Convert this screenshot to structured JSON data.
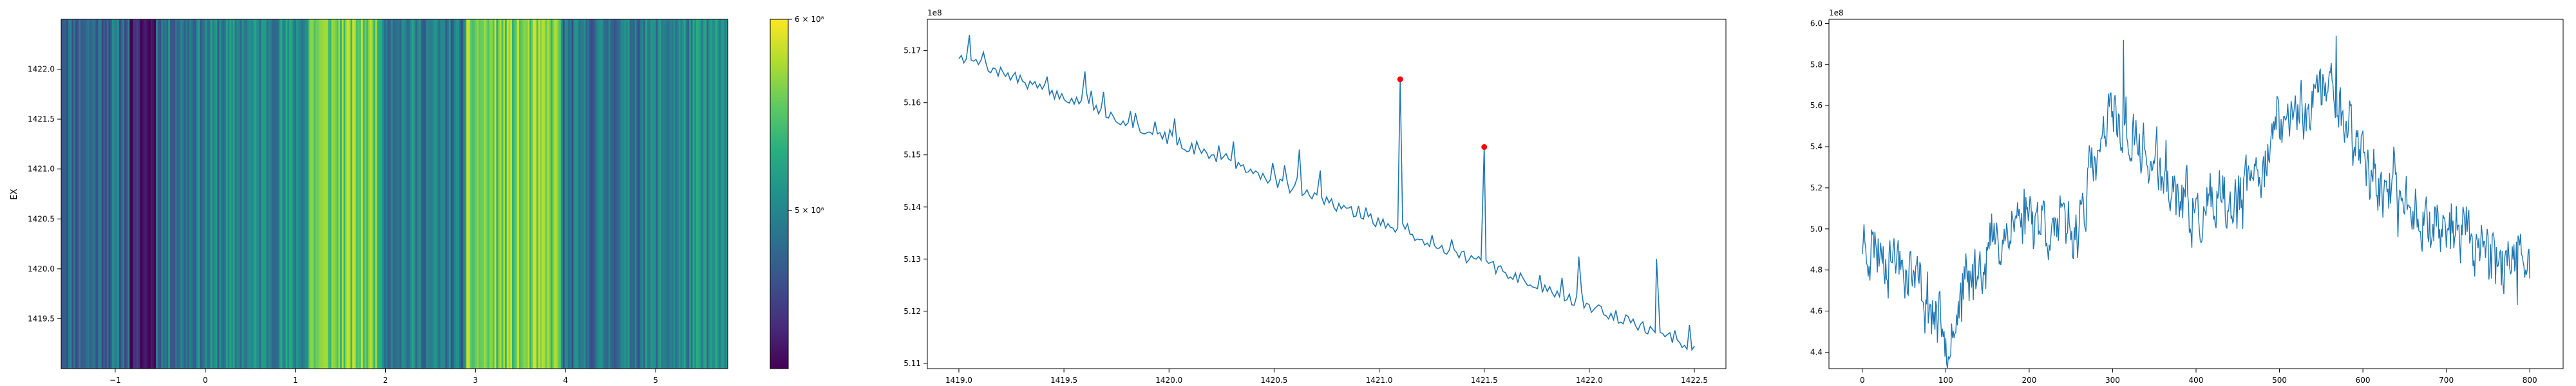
{
  "chart_data": [
    {
      "type": "heatmap",
      "title": "",
      "xlabel": "",
      "ylabel": "EX",
      "xlim": [
        -1.6,
        5.8
      ],
      "ylim": [
        1419.0,
        1422.5
      ],
      "xticks": [
        -1,
        0,
        1,
        2,
        3,
        4,
        5
      ],
      "xtick_labels": [
        "−1",
        "0",
        "1",
        "2",
        "3",
        "4",
        "5"
      ],
      "yticks": [
        1419.5,
        1420.0,
        1420.5,
        1421.0,
        1421.5,
        1422.0
      ],
      "ytick_labels": [
        "1419.5",
        "1420.0",
        "1420.5",
        "1421.0",
        "1421.5",
        "1422.0"
      ],
      "colormap": "viridis",
      "color_scale": "log",
      "colorbar": {
        "range": [
          430000000,
          600000000
        ],
        "ticks": [
          {
            "value": 500000000,
            "label": "5 × 10⁸"
          },
          {
            "value": 600000000,
            "label": "6 × 10⁸"
          }
        ]
      },
      "description_bands": [
        {
          "x": [
            -0.85,
            -0.55
          ],
          "level": "min"
        },
        {
          "x": [
            1.15,
            1.95
          ],
          "level": "high"
        },
        {
          "x": [
            2.9,
            3.95
          ],
          "level": "high"
        }
      ]
    },
    {
      "type": "line",
      "title": "",
      "xlabel": "",
      "ylabel": "",
      "offset_text": "1e8",
      "xlim": [
        1418.85,
        1422.65
      ],
      "ylim": [
        5.109,
        5.176
      ],
      "xticks": [
        1419.0,
        1419.5,
        1420.0,
        1420.5,
        1421.0,
        1421.5,
        1422.0,
        1422.5
      ],
      "xtick_labels": [
        "1419.0",
        "1419.5",
        "1420.0",
        "1420.5",
        "1421.0",
        "1421.5",
        "1422.0",
        "1422.5"
      ],
      "yticks": [
        5.11,
        5.12,
        5.13,
        5.14,
        5.15,
        5.16,
        5.17
      ],
      "ytick_labels": [
        "5.11",
        "5.12",
        "5.13",
        "5.14",
        "5.15",
        "5.16",
        "5.17"
      ],
      "line_color": "#1f77b4",
      "trend": {
        "x": [
          1419.0,
          1422.5
        ],
        "y": [
          5.169,
          5.113
        ]
      },
      "spikes": [
        {
          "x": 1419.05,
          "y": 5.173
        },
        {
          "x": 1419.42,
          "y": 5.165
        },
        {
          "x": 1419.6,
          "y": 5.166
        },
        {
          "x": 1419.84,
          "y": 5.158
        },
        {
          "x": 1420.55,
          "y": 5.148
        },
        {
          "x": 1420.62,
          "y": 5.151
        },
        {
          "x": 1420.72,
          "y": 5.147
        },
        {
          "x": 1421.1,
          "y": 5.1645
        },
        {
          "x": 1421.5,
          "y": 5.1515
        },
        {
          "x": 1421.95,
          "y": 5.1305
        },
        {
          "x": 1422.32,
          "y": 5.13
        }
      ],
      "markers": [
        {
          "x": 1421.1,
          "y": 5.1645,
          "color": "#ff0000"
        },
        {
          "x": 1421.5,
          "y": 5.1515,
          "color": "#ff0000"
        }
      ]
    },
    {
      "type": "line",
      "title": "",
      "xlabel": "",
      "ylabel": "",
      "offset_text": "1e8",
      "xlim": [
        -40,
        840
      ],
      "ylim": [
        4.32,
        6.02
      ],
      "xticks": [
        0,
        100,
        200,
        300,
        400,
        500,
        600,
        700,
        800
      ],
      "xtick_labels": [
        "0",
        "100",
        "200",
        "300",
        "400",
        "500",
        "600",
        "700",
        "800"
      ],
      "yticks": [
        4.4,
        4.6,
        4.8,
        5.0,
        5.2,
        5.4,
        5.6,
        5.8,
        6.0
      ],
      "ytick_labels": [
        "4.4",
        "4.6",
        "4.8",
        "5.0",
        "5.2",
        "5.4",
        "5.6",
        "5.8",
        "6.0"
      ],
      "line_color": "#1f77b4",
      "n_points": 801,
      "envelope": [
        {
          "x": 0,
          "y": 4.95
        },
        {
          "x": 50,
          "y": 4.85
        },
        {
          "x": 100,
          "y": 4.5
        },
        {
          "x": 150,
          "y": 4.9
        },
        {
          "x": 200,
          "y": 5.1
        },
        {
          "x": 250,
          "y": 4.95
        },
        {
          "x": 300,
          "y": 5.55
        },
        {
          "x": 350,
          "y": 5.3
        },
        {
          "x": 400,
          "y": 5.05
        },
        {
          "x": 450,
          "y": 5.1
        },
        {
          "x": 500,
          "y": 5.5
        },
        {
          "x": 560,
          "y": 5.7
        },
        {
          "x": 620,
          "y": 5.2
        },
        {
          "x": 680,
          "y": 5.05
        },
        {
          "x": 740,
          "y": 4.95
        },
        {
          "x": 800,
          "y": 4.75
        }
      ],
      "extremes": [
        {
          "x": 103,
          "y": 4.38
        },
        {
          "x": 313,
          "y": 5.92
        },
        {
          "x": 568,
          "y": 5.94
        },
        {
          "x": 785,
          "y": 4.63
        }
      ]
    }
  ]
}
